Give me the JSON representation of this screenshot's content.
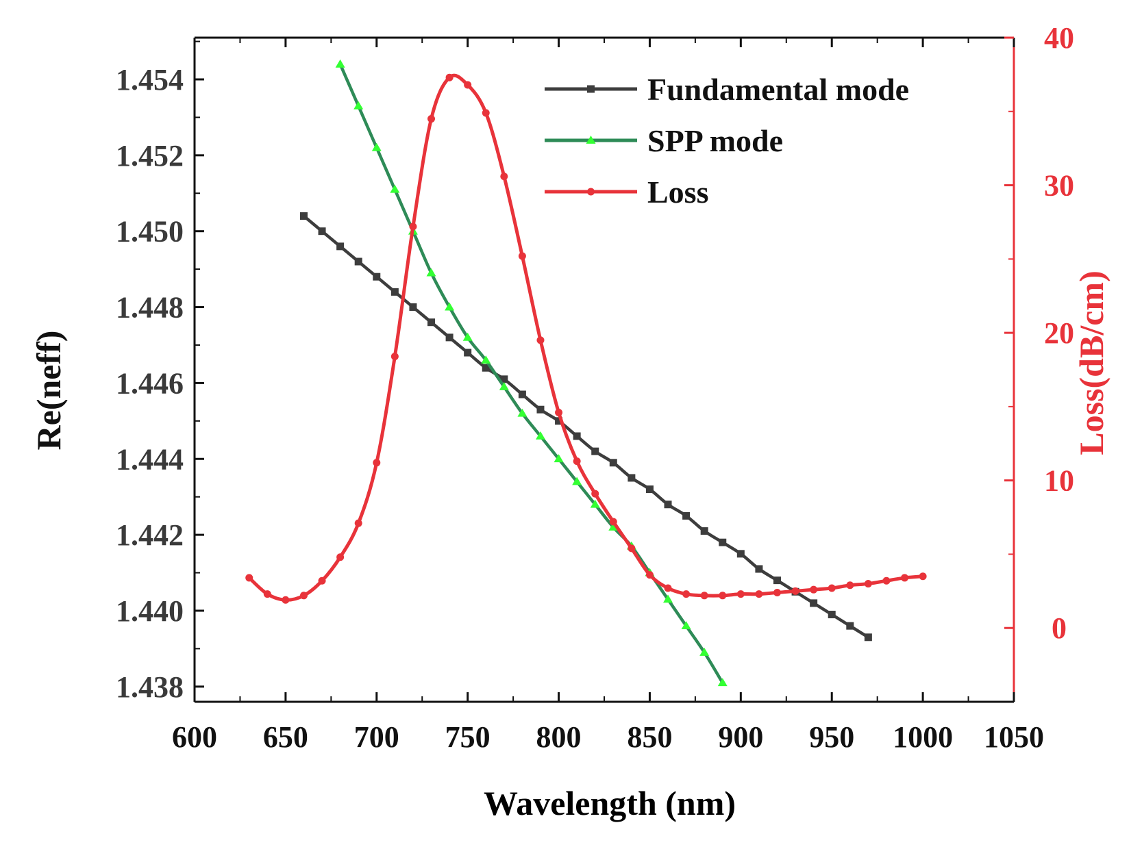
{
  "colors": {
    "fundamental": "#3d3d3d",
    "spp_line": "#2e8b57",
    "spp_marker": "#33ff33",
    "loss": "#e8333a",
    "axis": "#111111"
  },
  "chart_data": {
    "type": "line",
    "xlabel": "Wavelength (nm)",
    "ylabel": "Re(neff)",
    "y2label": "Loss(dB/cm)",
    "xlim": [
      600,
      1050
    ],
    "ylim": [
      1.4376,
      1.4551
    ],
    "y2lim": [
      -5,
      40
    ],
    "xticks": [
      "600",
      "650",
      "700",
      "750",
      "800",
      "850",
      "900",
      "950",
      "1000",
      "1050"
    ],
    "yticks": [
      "1.438",
      "1.440",
      "1.442",
      "1.444",
      "1.446",
      "1.448",
      "1.450",
      "1.452",
      "1.454"
    ],
    "y2ticks": [
      "0",
      "10",
      "20",
      "30",
      "40"
    ],
    "legend_position": "top-right",
    "series": [
      {
        "name": "Fundamental mode",
        "axis": "left",
        "marker": "square",
        "x": [
          660,
          670,
          680,
          690,
          700,
          710,
          720,
          730,
          740,
          750,
          760,
          770,
          780,
          790,
          800,
          810,
          820,
          830,
          840,
          850,
          860,
          870,
          880,
          890,
          900,
          910,
          920,
          930,
          940,
          950,
          960,
          970
        ],
        "y": [
          1.4504,
          1.45,
          1.4496,
          1.4492,
          1.4488,
          1.4484,
          1.448,
          1.4476,
          1.4472,
          1.4468,
          1.4464,
          1.4461,
          1.4457,
          1.4453,
          1.445,
          1.4446,
          1.4442,
          1.4439,
          1.4435,
          1.4432,
          1.4428,
          1.4425,
          1.4421,
          1.4418,
          1.4415,
          1.4411,
          1.4408,
          1.4405,
          1.4402,
          1.4399,
          1.4396,
          1.4393
        ]
      },
      {
        "name": "SPP mode",
        "axis": "left",
        "marker": "triangle",
        "x": [
          680,
          690,
          700,
          710,
          720,
          730,
          740,
          750,
          760,
          770,
          780,
          790,
          800,
          810,
          820,
          830,
          840,
          850,
          860,
          870,
          880,
          890
        ],
        "y": [
          1.4544,
          1.4533,
          1.4522,
          1.4511,
          1.45,
          1.4489,
          1.448,
          1.4472,
          1.4466,
          1.4459,
          1.4452,
          1.4446,
          1.444,
          1.4434,
          1.4428,
          1.4422,
          1.4417,
          1.441,
          1.4403,
          1.4396,
          1.4389,
          1.4381
        ]
      },
      {
        "name": "Loss",
        "axis": "right",
        "marker": "circle",
        "x": [
          630,
          640,
          650,
          660,
          670,
          680,
          690,
          700,
          710,
          720,
          730,
          740,
          750,
          760,
          770,
          780,
          790,
          800,
          810,
          820,
          830,
          840,
          850,
          860,
          870,
          880,
          890,
          900,
          910,
          920,
          930,
          940,
          950,
          960,
          970,
          980,
          990,
          1000
        ],
        "y": [
          3.4,
          2.3,
          1.9,
          2.2,
          3.2,
          4.8,
          7.1,
          11.2,
          18.4,
          27.2,
          34.5,
          37.3,
          36.8,
          34.9,
          30.6,
          25.2,
          19.5,
          14.6,
          11.3,
          9.1,
          7.2,
          5.4,
          3.6,
          2.7,
          2.3,
          2.2,
          2.2,
          2.3,
          2.3,
          2.4,
          2.5,
          2.6,
          2.7,
          2.9,
          3.0,
          3.2,
          3.4,
          3.5
        ]
      }
    ]
  }
}
